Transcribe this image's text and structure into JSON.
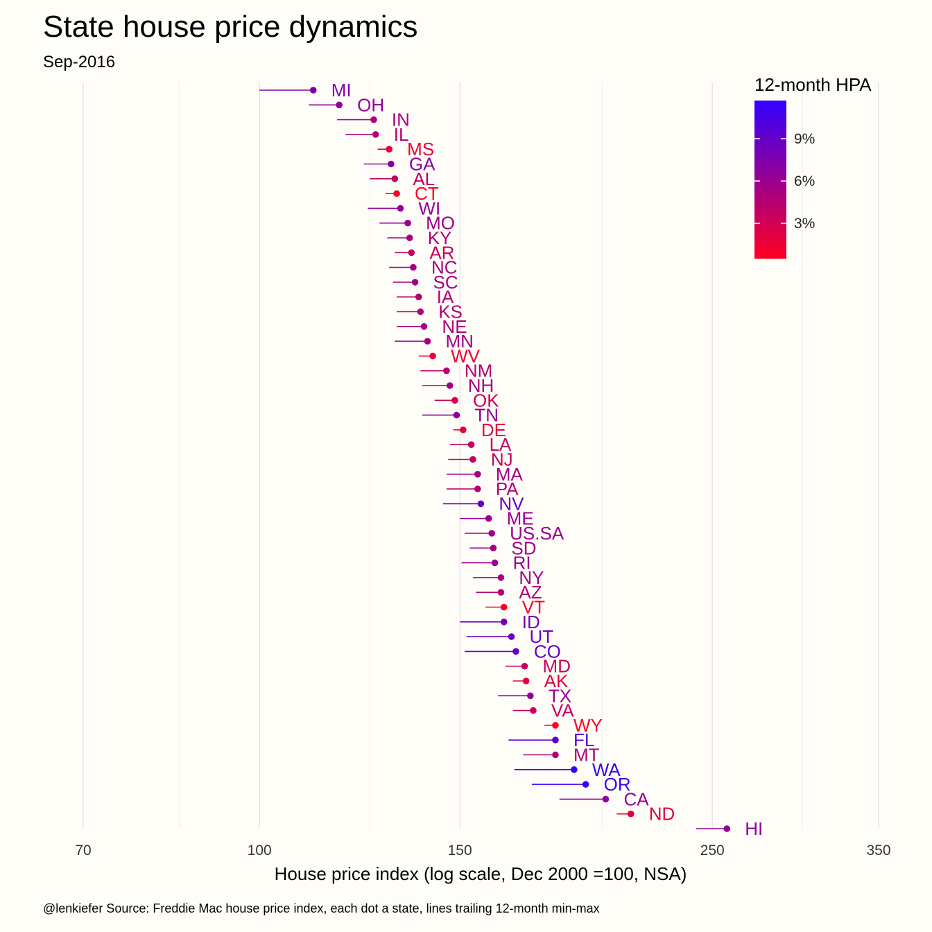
{
  "chart_data": {
    "type": "scatter",
    "title": "State house price dynamics",
    "subtitle": "Sep-2016",
    "xlabel": "House price index (log scale, Dec 2000 =100, NSA)",
    "x_scale": "log",
    "xlim": [
      70,
      350
    ],
    "x_ticks": [
      70,
      100,
      150,
      250,
      350
    ],
    "x_minor_gridlines": [
      85,
      125,
      200,
      300
    ],
    "grid": true,
    "caption": "@lenkiefer Source: Freddie Mac house price index, each dot a state, lines trailing 12-month min-max",
    "legend": {
      "title": "12-month HPA",
      "position": "top-right",
      "ticks": [
        "3%",
        "6%",
        "9%"
      ],
      "tick_values": [
        0.03,
        0.06,
        0.09
      ],
      "range": [
        0.005,
        0.117
      ],
      "color_low": "#ff0022",
      "color_high": "#3300ff"
    },
    "points": [
      {
        "state": "MI",
        "value": 111.5,
        "trail_min": 100.0,
        "hpa": 0.075
      },
      {
        "state": "OH",
        "value": 117.5,
        "trail_min": 110.5,
        "hpa": 0.065
      },
      {
        "state": "IN",
        "value": 126.0,
        "trail_min": 117.0,
        "hpa": 0.05
      },
      {
        "state": "IL",
        "value": 126.5,
        "trail_min": 119.0,
        "hpa": 0.045
      },
      {
        "state": "MS",
        "value": 130.0,
        "trail_min": 127.0,
        "hpa": 0.015
      },
      {
        "state": "GA",
        "value": 130.5,
        "trail_min": 123.5,
        "hpa": 0.07
      },
      {
        "state": "AL",
        "value": 131.5,
        "trail_min": 125.0,
        "hpa": 0.04
      },
      {
        "state": "CT",
        "value": 132.0,
        "trail_min": 129.0,
        "hpa": 0.005
      },
      {
        "state": "WI",
        "value": 133.0,
        "trail_min": 124.5,
        "hpa": 0.065
      },
      {
        "state": "MO",
        "value": 135.0,
        "trail_min": 127.5,
        "hpa": 0.06
      },
      {
        "state": "KY",
        "value": 135.5,
        "trail_min": 129.5,
        "hpa": 0.05
      },
      {
        "state": "AR",
        "value": 136.0,
        "trail_min": 131.5,
        "hpa": 0.035
      },
      {
        "state": "NC",
        "value": 136.5,
        "trail_min": 130.0,
        "hpa": 0.055
      },
      {
        "state": "SC",
        "value": 137.0,
        "trail_min": 131.0,
        "hpa": 0.055
      },
      {
        "state": "IA",
        "value": 138.0,
        "trail_min": 132.0,
        "hpa": 0.045
      },
      {
        "state": "KS",
        "value": 138.5,
        "trail_min": 132.0,
        "hpa": 0.045
      },
      {
        "state": "NE",
        "value": 139.5,
        "trail_min": 132.0,
        "hpa": 0.05
      },
      {
        "state": "MN",
        "value": 140.5,
        "trail_min": 131.5,
        "hpa": 0.055
      },
      {
        "state": "WV",
        "value": 142.0,
        "trail_min": 138.0,
        "hpa": 0.015
      },
      {
        "state": "NM",
        "value": 146.0,
        "trail_min": 138.5,
        "hpa": 0.045
      },
      {
        "state": "NH",
        "value": 147.0,
        "trail_min": 139.0,
        "hpa": 0.055
      },
      {
        "state": "OK",
        "value": 148.5,
        "trail_min": 142.5,
        "hpa": 0.03
      },
      {
        "state": "TN",
        "value": 149.0,
        "trail_min": 139.0,
        "hpa": 0.07
      },
      {
        "state": "DE",
        "value": 151.0,
        "trail_min": 148.0,
        "hpa": 0.02
      },
      {
        "state": "LA",
        "value": 153.5,
        "trail_min": 147.0,
        "hpa": 0.035
      },
      {
        "state": "NJ",
        "value": 154.0,
        "trail_min": 146.5,
        "hpa": 0.035
      },
      {
        "state": "MA",
        "value": 155.5,
        "trail_min": 146.0,
        "hpa": 0.055
      },
      {
        "state": "PA",
        "value": 155.5,
        "trail_min": 146.0,
        "hpa": 0.045
      },
      {
        "state": "NV",
        "value": 156.5,
        "trail_min": 145.0,
        "hpa": 0.09
      },
      {
        "state": "ME",
        "value": 159.0,
        "trail_min": 150.0,
        "hpa": 0.06
      },
      {
        "state": "US.SA",
        "value": 160.0,
        "trail_min": 151.5,
        "hpa": 0.06
      },
      {
        "state": "SD",
        "value": 160.5,
        "trail_min": 153.0,
        "hpa": 0.055
      },
      {
        "state": "RI",
        "value": 161.0,
        "trail_min": 150.5,
        "hpa": 0.06
      },
      {
        "state": "NY",
        "value": 163.0,
        "trail_min": 154.0,
        "hpa": 0.055
      },
      {
        "state": "AZ",
        "value": 163.0,
        "trail_min": 155.0,
        "hpa": 0.045
      },
      {
        "state": "VT",
        "value": 164.0,
        "trail_min": 158.0,
        "hpa": 0.01
      },
      {
        "state": "ID",
        "value": 164.0,
        "trail_min": 150.0,
        "hpa": 0.08
      },
      {
        "state": "UT",
        "value": 166.5,
        "trail_min": 152.0,
        "hpa": 0.085
      },
      {
        "state": "CO",
        "value": 168.0,
        "trail_min": 151.5,
        "hpa": 0.09
      },
      {
        "state": "MD",
        "value": 171.0,
        "trail_min": 164.5,
        "hpa": 0.035
      },
      {
        "state": "AK",
        "value": 171.5,
        "trail_min": 167.0,
        "hpa": 0.02
      },
      {
        "state": "TX",
        "value": 173.0,
        "trail_min": 162.0,
        "hpa": 0.065
      },
      {
        "state": "VA",
        "value": 174.0,
        "trail_min": 167.0,
        "hpa": 0.035
      },
      {
        "state": "WY",
        "value": 182.0,
        "trail_min": 178.0,
        "hpa": 0.005
      },
      {
        "state": "FL",
        "value": 182.0,
        "trail_min": 165.5,
        "hpa": 0.095
      },
      {
        "state": "MT",
        "value": 182.0,
        "trail_min": 170.5,
        "hpa": 0.05
      },
      {
        "state": "WA",
        "value": 189.0,
        "trail_min": 167.5,
        "hpa": 0.117
      },
      {
        "state": "OR",
        "value": 193.5,
        "trail_min": 173.5,
        "hpa": 0.115
      },
      {
        "state": "CA",
        "value": 201.5,
        "trail_min": 183.5,
        "hpa": 0.065
      },
      {
        "state": "ND",
        "value": 212.0,
        "trail_min": 206.0,
        "hpa": 0.02
      },
      {
        "state": "HI",
        "value": 257.5,
        "trail_min": 242.0,
        "hpa": 0.065
      }
    ]
  }
}
